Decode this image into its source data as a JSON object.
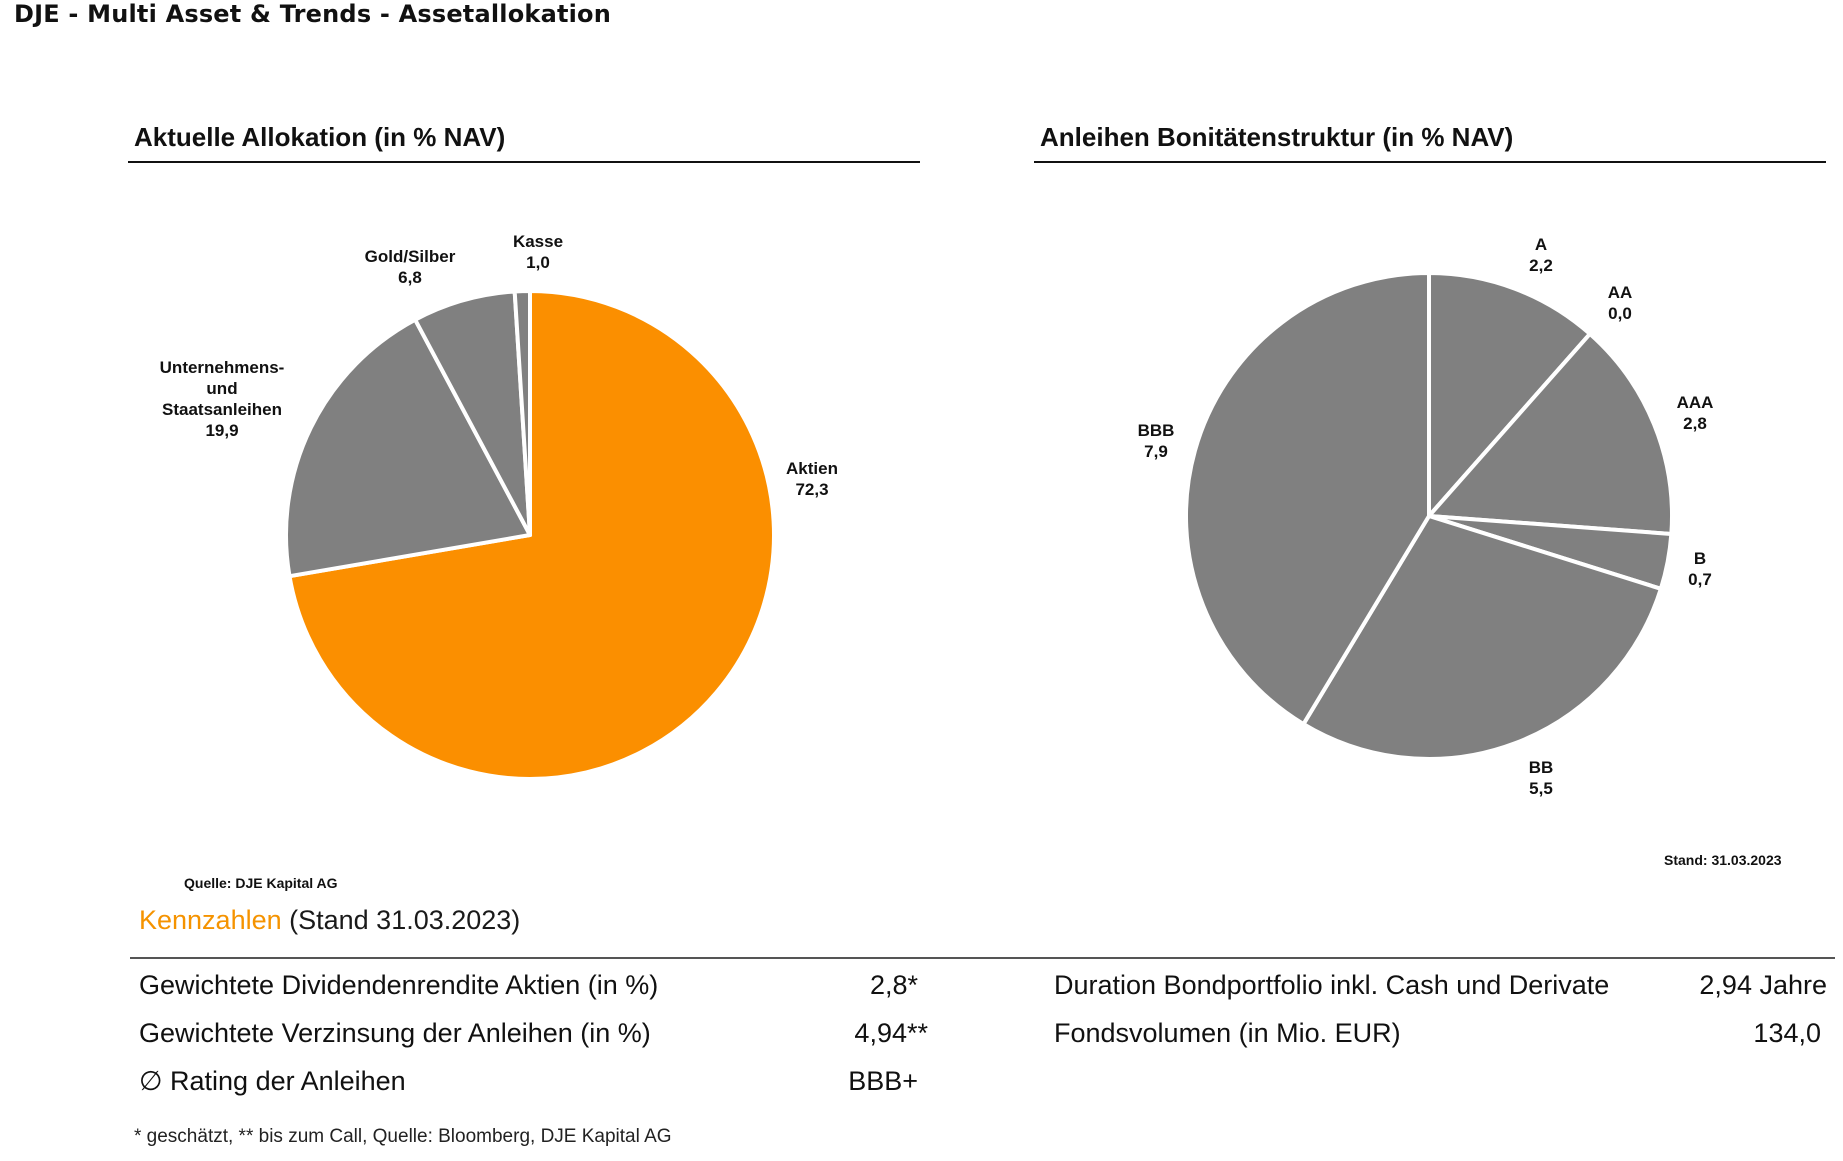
{
  "page_title": "DJE - Multi Asset & Trends - Assetallokation",
  "chart_data": [
    {
      "type": "pie",
      "title": "Aktuelle Allokation (in % NAV)",
      "categories": [
        "Aktien",
        "Unternehmens- und Staatsanleihen",
        "Gold/Silber",
        "Kasse"
      ],
      "label_lines": [
        [
          "Aktien"
        ],
        [
          "Unternehmens-",
          "und",
          "Staatsanleihen"
        ],
        [
          "Gold/Silber"
        ],
        [
          "Kasse"
        ]
      ],
      "values": [
        72.3,
        19.9,
        6.8,
        1.0
      ],
      "value_labels": [
        "72,3",
        "19,9",
        "6,8",
        "1,0"
      ],
      "colors": [
        "#fb8f00",
        "#808080",
        "#808080",
        "#808080"
      ],
      "source": "Quelle: DJE Kapital AG"
    },
    {
      "type": "pie",
      "title": "Anleihen Bonitätenstruktur (in % NAV)",
      "categories": [
        "A",
        "AA",
        "AAA",
        "B",
        "BB",
        "BBB"
      ],
      "label_lines": [
        [
          "A"
        ],
        [
          "AA"
        ],
        [
          "AAA"
        ],
        [
          "B"
        ],
        [
          "BB"
        ],
        [
          "BBB"
        ]
      ],
      "values": [
        2.2,
        0.0,
        2.8,
        0.7,
        5.5,
        7.9
      ],
      "value_labels": [
        "2,2",
        "0,0",
        "2,8",
        "0,7",
        "5,5",
        "7,9"
      ],
      "colors": [
        "#808080",
        "#808080",
        "#808080",
        "#808080",
        "#808080",
        "#808080"
      ],
      "date_note": "Stand: 31.03.2023"
    }
  ],
  "kennzahlen": {
    "title_accent": "Kennzahlen",
    "title_rest": " (Stand 31.03.2023)",
    "left_rows": [
      {
        "label": "Gewichtete Dividendenrendite Aktien (in %)",
        "value": "2,8*"
      },
      {
        "label": "Gewichtete Verzinsung der Anleihen (in %)",
        "value": "4,94**"
      },
      {
        "label": "∅ Rating der Anleihen",
        "value": "BBB+"
      }
    ],
    "right_rows": [
      {
        "label": "Duration Bondportfolio inkl. Cash und Derivate",
        "value": "2,94 Jahre"
      },
      {
        "label": "Fondsvolumen (in Mio. EUR)",
        "value": "134,0"
      }
    ],
    "footnote": "* geschätzt, ** bis zum Call, Quelle: Bloomberg, DJE Kapital AG"
  }
}
